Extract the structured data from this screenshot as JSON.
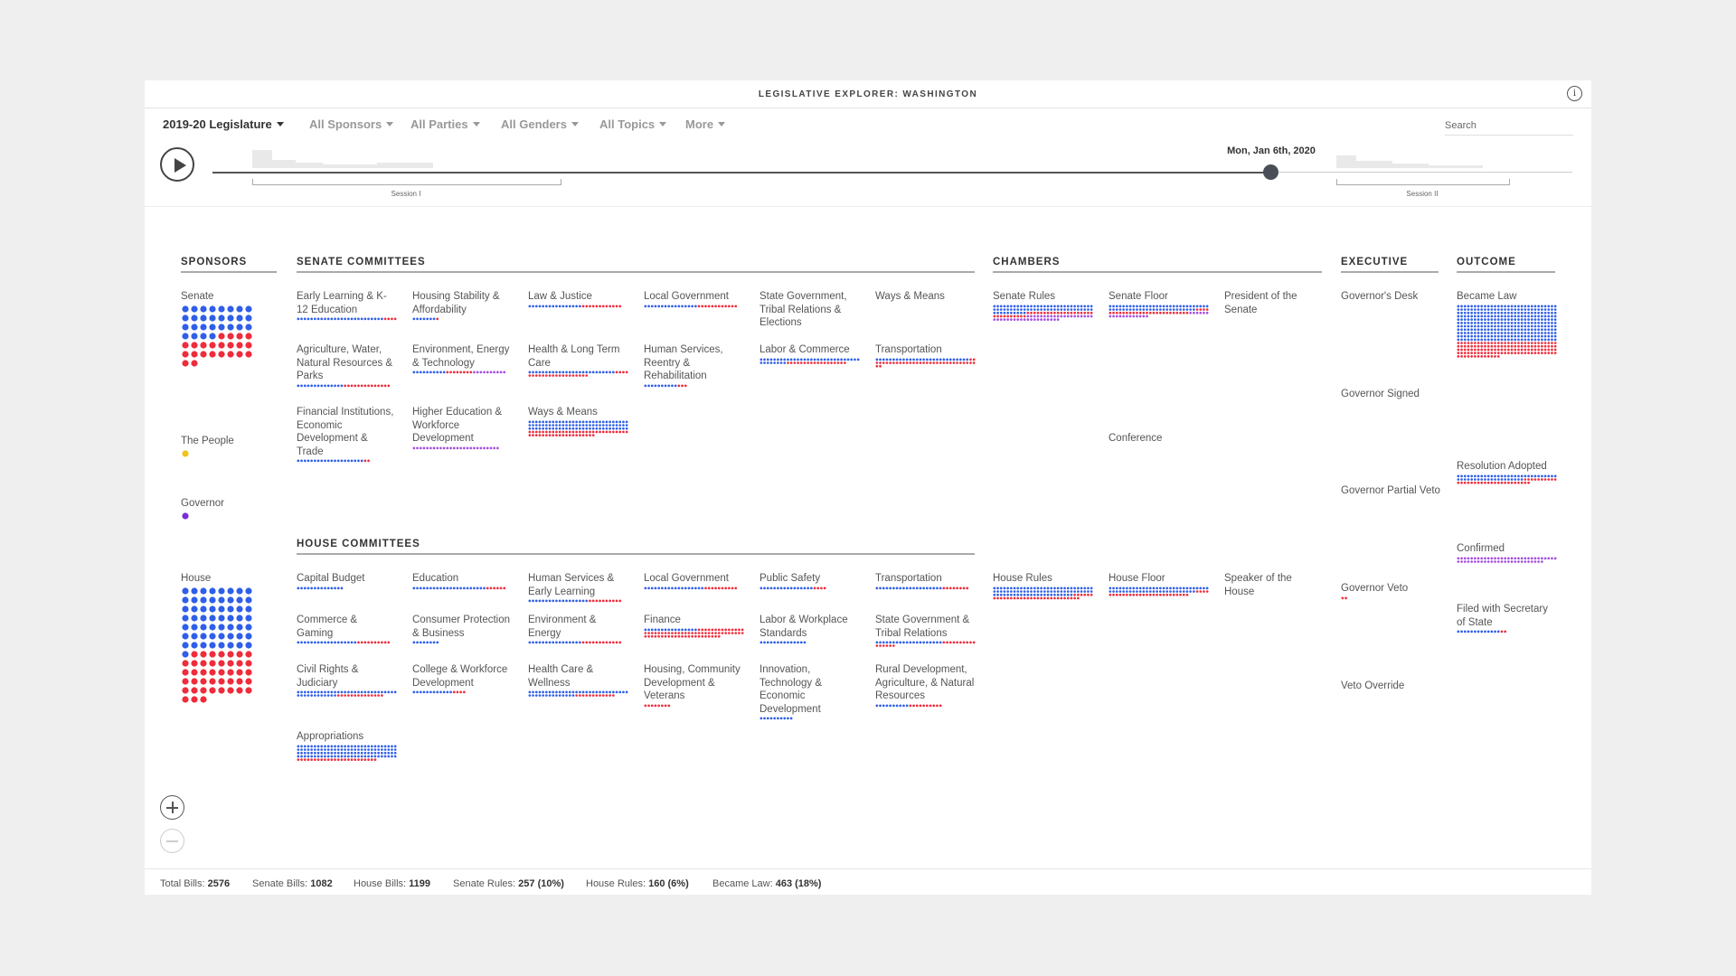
{
  "app": {
    "title": "LEGISLATIVE EXPLORER: WASHINGTON",
    "info_icon": "info-icon"
  },
  "filters": [
    "2019-20 Legislature",
    "All Sponsors",
    "All Parties",
    "All Genders",
    "All Topics",
    "More"
  ],
  "search": {
    "placeholder": "Search",
    "value": ""
  },
  "timeline": {
    "date": "Mon, Jan 6th, 2020",
    "progress": 0.82,
    "sessions": [
      "Session I",
      "Session II"
    ]
  },
  "colors": {
    "dem": "#2f5fe8",
    "rep": "#ef2c3b",
    "people": "#f0c419",
    "gov": "#7b2fd6",
    "mixed": "#a44de0"
  },
  "columns": [
    "SPONSORS",
    "SENATE COMMITTEES",
    "CHAMBERS",
    "EXECUTIVE",
    "OUTCOME"
  ],
  "house_committees_header": "HOUSE COMMITTEES",
  "sponsors": [
    {
      "label": "Senate",
      "dem": 28,
      "rep": 22,
      "other": 0
    },
    {
      "label": "The People",
      "dem": 0,
      "rep": 0,
      "other": 1,
      "other_color": "people"
    },
    {
      "label": "Governor",
      "dem": 0,
      "rep": 0,
      "other": 1,
      "other_color": "gov"
    },
    {
      "label": "House",
      "dem": 57,
      "rep": 42,
      "other": 0
    }
  ],
  "senate_committees": [
    {
      "label": "Early Learning & K-12 Education",
      "dem": 26,
      "rep": 4,
      "other": 0
    },
    {
      "label": "Housing Stability & Affordability",
      "dem": 7,
      "rep": 1,
      "other": 0
    },
    {
      "label": "Law & Justice",
      "dem": 16,
      "rep": 12,
      "other": 0
    },
    {
      "label": "Local Government",
      "dem": 16,
      "rep": 12,
      "other": 0
    },
    {
      "label": "State Government, Tribal Relations & Elections",
      "dem": 0,
      "rep": 0,
      "other": 0
    },
    {
      "label": "Ways & Means",
      "dem": 0,
      "rep": 0,
      "other": 0
    },
    {
      "label": "Agriculture, Water, Natural Resources & Parks",
      "dem": 14,
      "rep": 14,
      "other": 0
    },
    {
      "label": "Environment, Energy & Technology",
      "dem": 10,
      "rep": 8,
      "other": 10
    },
    {
      "label": "Health & Long Term Care",
      "dem": 26,
      "rep": 22,
      "other": 0
    },
    {
      "label": "Human Services, Reentry & Rehabilitation",
      "dem": 10,
      "rep": 3,
      "other": 0
    },
    {
      "label": "Labor & Commerce",
      "dem": 38,
      "rep": 18,
      "other": 0
    },
    {
      "label": "Transportation",
      "dem": 28,
      "rep": 34,
      "other": 0
    },
    {
      "label": "Financial Institutions, Economic Development & Trade",
      "dem": 20,
      "rep": 2,
      "other": 0
    },
    {
      "label": "Higher Education & Workforce Development",
      "dem": 0,
      "rep": 0,
      "other": 26
    },
    {
      "label": "Ways & Means",
      "dem": 90,
      "rep": 50,
      "other": 0
    }
  ],
  "house_committees": [
    {
      "label": "Capital Budget",
      "dem": 14,
      "rep": 0,
      "other": 0
    },
    {
      "label": "Education",
      "dem": 22,
      "rep": 6,
      "other": 0
    },
    {
      "label": "Human Services & Early Learning",
      "dem": 18,
      "rep": 10,
      "other": 0
    },
    {
      "label": "Local Government",
      "dem": 18,
      "rep": 10,
      "other": 0
    },
    {
      "label": "Public Safety",
      "dem": 16,
      "rep": 4,
      "other": 0
    },
    {
      "label": "Transportation",
      "dem": 20,
      "rep": 8,
      "other": 0
    },
    {
      "label": "Commerce & Gaming",
      "dem": 18,
      "rep": 10,
      "other": 0
    },
    {
      "label": "Consumer Protection & Business",
      "dem": 8,
      "rep": 0,
      "other": 0
    },
    {
      "label": "Environment & Energy",
      "dem": 16,
      "rep": 12,
      "other": 0
    },
    {
      "label": "Finance",
      "dem": 16,
      "rep": 67,
      "other": 0
    },
    {
      "label": "Labor & Workplace Standards",
      "dem": 14,
      "rep": 0,
      "other": 0
    },
    {
      "label": "State Government & Tribal Relations",
      "dem": 20,
      "rep": 16,
      "other": 0
    },
    {
      "label": "Civil Rights & Judiciary",
      "dem": 42,
      "rep": 14,
      "other": 0
    },
    {
      "label": "College & Workforce Development",
      "dem": 12,
      "rep": 4,
      "other": 0
    },
    {
      "label": "Health Care & Wellness",
      "dem": 44,
      "rep": 12,
      "other": 0
    },
    {
      "label": "Housing, Community Development & Veterans",
      "dem": 0,
      "rep": 8,
      "other": 0
    },
    {
      "label": "Innovation, Technology & Economic Development",
      "dem": 10,
      "rep": 0,
      "other": 0
    },
    {
      "label": "Rural Development, Agriculture, & Natural Resources",
      "dem": 10,
      "rep": 10,
      "other": 0
    },
    {
      "label": "Appropriations",
      "dem": 120,
      "rep": 24,
      "other": 0
    }
  ],
  "chambers": [
    {
      "label": "Senate Rules",
      "dem": 70,
      "rep": 30,
      "other": 40
    },
    {
      "label": "Senate Floor",
      "dem": 56,
      "rep": 28,
      "other": 18
    },
    {
      "label": "President of the Senate",
      "dem": 0,
      "rep": 0,
      "other": 0
    },
    {
      "label": "Conference",
      "dem": 0,
      "rep": 0,
      "other": 0
    },
    {
      "label": "House Rules",
      "dem": 84,
      "rep": 32,
      "other": 0
    },
    {
      "label": "House Floor",
      "dem": 56,
      "rep": 28,
      "other": 0
    },
    {
      "label": "Speaker of the House",
      "dem": 0,
      "rep": 0,
      "other": 0
    }
  ],
  "executive": [
    {
      "label": "Governor's Desk",
      "dem": 0,
      "rep": 0,
      "other": 0
    },
    {
      "label": "Governor Signed",
      "dem": 0,
      "rep": 0,
      "other": 0
    },
    {
      "label": "Governor Partial Veto",
      "dem": 0,
      "rep": 0,
      "other": 0
    },
    {
      "label": "Governor Veto",
      "dem": 0,
      "rep": 2,
      "other": 0
    },
    {
      "label": "Veto Override",
      "dem": 0,
      "rep": 0,
      "other": 0
    }
  ],
  "outcome": [
    {
      "label": "Became Law",
      "dem": 330,
      "rep": 133,
      "other": 0
    },
    {
      "label": "Resolution Adopted",
      "dem": 50,
      "rep": 32,
      "other": 0
    },
    {
      "label": "Confirmed",
      "dem": 0,
      "rep": 0,
      "other": 56
    },
    {
      "label": "Filed with Secretary of State",
      "dem": 13,
      "rep": 2,
      "other": 0
    }
  ],
  "stats": [
    {
      "label": "Total Bills:",
      "value": "2576"
    },
    {
      "label": "Senate Bills:",
      "value": "1082"
    },
    {
      "label": "House Bills:",
      "value": "1199"
    },
    {
      "label": "Senate Rules:",
      "value": "257 (10%)"
    },
    {
      "label": "House Rules:",
      "value": "160 (6%)"
    },
    {
      "label": "Became Law:",
      "value": "463 (18%)"
    }
  ]
}
